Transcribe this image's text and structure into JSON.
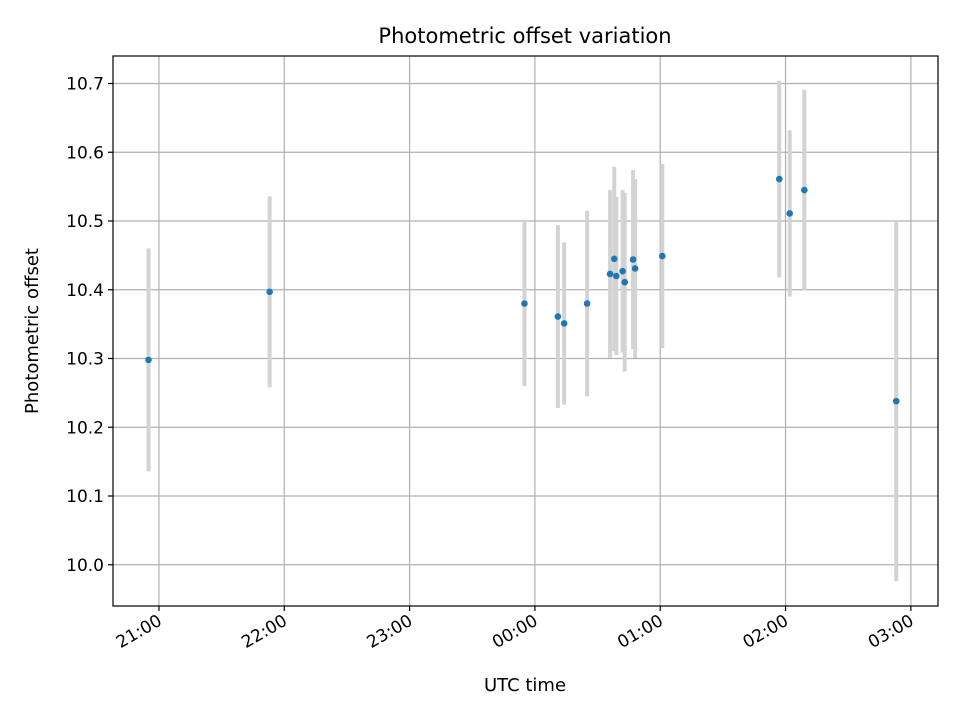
{
  "chart_data": {
    "type": "scatter",
    "title": "Photometric offset variation",
    "xlabel": "UTC time",
    "ylabel": "Photometric offset",
    "x_axis": {
      "type": "time",
      "ticks": [
        "21:00",
        "22:00",
        "23:00",
        "00:00",
        "01:00",
        "02:00",
        "03:00"
      ],
      "range": [
        "20:38",
        "03:13"
      ]
    },
    "ylim": [
      9.94,
      10.74
    ],
    "yticks": [
      10.0,
      10.1,
      10.2,
      10.3,
      10.4,
      10.5,
      10.6,
      10.7
    ],
    "grid": true,
    "colors": {
      "points": "#1f77b4",
      "errorbars": "#d3d3d3",
      "grid": "#b0b0b0"
    },
    "points": [
      {
        "t": "20:55",
        "y": 10.298,
        "err": 0.162
      },
      {
        "t": "21:53",
        "y": 10.397,
        "err": 0.139
      },
      {
        "t": "23:55",
        "y": 10.38,
        "err": 0.12
      },
      {
        "t": "00:11",
        "y": 10.361,
        "err": 0.133
      },
      {
        "t": "00:14",
        "y": 10.351,
        "err": 0.118
      },
      {
        "t": "00:25",
        "y": 10.38,
        "err": 0.135
      },
      {
        "t": "00:36",
        "y": 10.423,
        "err": 0.122
      },
      {
        "t": "00:38",
        "y": 10.445,
        "err": 0.134
      },
      {
        "t": "00:39",
        "y": 10.42,
        "err": 0.115
      },
      {
        "t": "00:42",
        "y": 10.427,
        "err": 0.118
      },
      {
        "t": "00:43",
        "y": 10.411,
        "err": 0.13
      },
      {
        "t": "00:47",
        "y": 10.444,
        "err": 0.13
      },
      {
        "t": "00:48",
        "y": 10.431,
        "err": 0.13
      },
      {
        "t": "01:01",
        "y": 10.449,
        "err": 0.134
      },
      {
        "t": "01:57",
        "y": 10.561,
        "err": 0.143
      },
      {
        "t": "02:02",
        "y": 10.511,
        "err": 0.121
      },
      {
        "t": "02:09",
        "y": 10.545,
        "err": 0.146
      },
      {
        "t": "02:53",
        "y": 10.238,
        "err": 0.262
      }
    ]
  }
}
